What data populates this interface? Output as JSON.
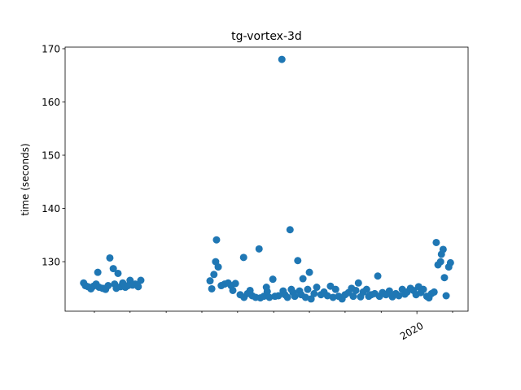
{
  "chart_data": {
    "type": "scatter",
    "title": "tg-vortex-3d",
    "y_label": "time (seconds)",
    "color": "#1f77b4",
    "x": [
      2019.225,
      2019.229,
      2019.235,
      2019.242,
      2019.248,
      2019.254,
      2019.258,
      2019.261,
      2019.269,
      2019.276,
      2019.282,
      2019.286,
      2019.294,
      2019.297,
      2019.301,
      2019.305,
      2019.311,
      2019.316,
      2019.322,
      2019.328,
      2019.333,
      2019.339,
      2019.345,
      2019.352,
      2019.358,
      2019.519,
      2019.523,
      2019.528,
      2019.532,
      2019.534,
      2019.538,
      2019.545,
      2019.553,
      2019.561,
      2019.568,
      2019.572,
      2019.578,
      2019.589,
      2019.597,
      2019.598,
      2019.606,
      2019.612,
      2019.617,
      2019.625,
      2019.633,
      2019.636,
      2019.644,
      2019.65,
      2019.652,
      2019.657,
      2019.665,
      2019.67,
      2019.678,
      2019.686,
      2019.689,
      2019.693,
      2019.699,
      2019.705,
      2019.708,
      2019.712,
      2019.716,
      2019.723,
      2019.727,
      2019.731,
      2019.735,
      2019.741,
      2019.746,
      2019.75,
      2019.754,
      2019.761,
      2019.767,
      2019.777,
      2019.784,
      2019.792,
      2019.799,
      2019.805,
      2019.811,
      2019.818,
      2019.826,
      2019.833,
      2019.841,
      2019.848,
      2019.852,
      2019.858,
      2019.864,
      2019.869,
      2019.875,
      2019.883,
      2019.888,
      2019.894,
      2019.902,
      2019.909,
      2019.913,
      2019.92,
      2019.928,
      2019.936,
      2019.943,
      2019.951,
      2019.958,
      2019.966,
      2019.972,
      2019.977,
      2019.985,
      2019.992,
      2019.998,
      2020.004,
      2020.009,
      2020.015,
      2020.023,
      2020.028,
      2020.034,
      2020.04,
      2020.045,
      2020.049,
      2020.055,
      2020.057,
      2020.061,
      2020.064,
      2020.068,
      2020.074,
      2020.078
    ],
    "values": [
      126.0,
      125.5,
      125.3,
      124.9,
      125.4,
      125.8,
      128.0,
      125.2,
      125.0,
      124.8,
      125.5,
      130.7,
      128.7,
      125.8,
      125.0,
      127.8,
      125.3,
      126.0,
      125.2,
      125.5,
      126.5,
      125.6,
      125.8,
      125.3,
      126.5,
      126.4,
      124.9,
      127.6,
      130.0,
      134.1,
      129.0,
      125.5,
      125.8,
      126.0,
      125.5,
      124.6,
      125.9,
      123.8,
      130.8,
      123.3,
      124.0,
      124.6,
      123.6,
      123.3,
      132.4,
      123.2,
      123.5,
      125.2,
      124.4,
      123.3,
      126.7,
      123.5,
      123.6,
      168.0,
      124.5,
      123.8,
      123.3,
      136.0,
      124.8,
      124.2,
      123.5,
      130.2,
      124.5,
      123.8,
      126.8,
      123.3,
      124.8,
      128.0,
      123.0,
      124.0,
      125.2,
      123.8,
      124.3,
      123.6,
      125.4,
      123.3,
      124.8,
      123.5,
      123.0,
      123.8,
      124.2,
      125.0,
      123.5,
      124.6,
      126.0,
      123.4,
      124.3,
      124.8,
      123.5,
      123.8,
      124.0,
      127.3,
      123.5,
      124.2,
      123.8,
      124.5,
      123.4,
      124.0,
      123.6,
      124.8,
      123.9,
      124.3,
      125.0,
      124.6,
      123.8,
      125.3,
      124.2,
      124.8,
      123.5,
      123.2,
      124.0,
      124.3,
      133.6,
      129.4,
      130.0,
      131.4,
      132.3,
      127.0,
      123.6,
      129.0,
      129.8
    ],
    "xlim": [
      2019.182,
      2020.119
    ],
    "xticks": [
      2020
    ],
    "xminorticks": [
      2019.25,
      2019.333,
      2019.417,
      2019.5,
      2019.583,
      2019.667,
      2019.75,
      2019.833,
      2019.917,
      2020.083
    ],
    "ylim": [
      120.7,
      170.3
    ],
    "yticks": [
      130,
      140,
      150,
      160,
      170
    ]
  }
}
